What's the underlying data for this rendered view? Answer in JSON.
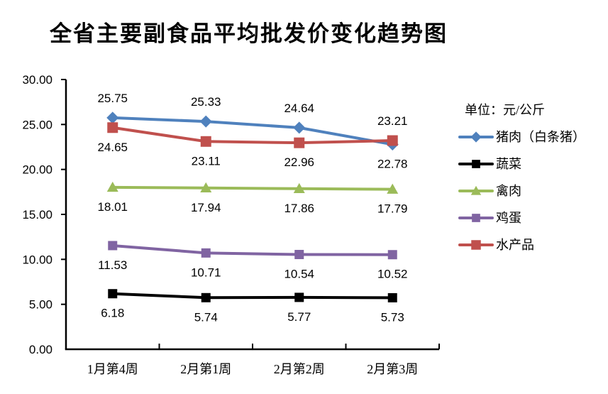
{
  "title": "全省主要副食品平均批发价变化趋势图",
  "legend": {
    "unit_label": "单位：元/公斤",
    "position": "right"
  },
  "chart_data": {
    "type": "line",
    "title": "全省主要副食品平均批发价变化趋势图",
    "unit": "元/公斤",
    "categories": [
      "1月第4周",
      "2月第1周",
      "2月第2周",
      "2月第3周"
    ],
    "xlabel": "",
    "ylabel": "",
    "y_axis": {
      "min": 0,
      "max": 30,
      "step": 5,
      "tick_labels": [
        "0.00",
        "5.00",
        "10.00",
        "15.00",
        "20.00",
        "25.00",
        "30.00"
      ]
    },
    "grid": false,
    "legend_position": "right",
    "series": [
      {
        "name": "猪肉（白条猪）",
        "color": "#4F81BD",
        "marker": "diamond",
        "values": [
          25.75,
          25.33,
          24.64,
          22.78
        ],
        "labels": [
          "25.75",
          "25.33",
          "24.64",
          "22.78"
        ],
        "label_positions": [
          "above",
          "above",
          "above",
          "below"
        ]
      },
      {
        "name": "蔬菜",
        "color": "#000000",
        "marker": "square",
        "values": [
          6.18,
          5.74,
          5.77,
          5.73
        ],
        "labels": [
          "6.18",
          "5.74",
          "5.77",
          "5.73"
        ],
        "label_positions": [
          "below",
          "below",
          "below",
          "below"
        ]
      },
      {
        "name": "禽肉",
        "color": "#9BBB59",
        "marker": "triangle",
        "values": [
          18.01,
          17.94,
          17.86,
          17.79
        ],
        "labels": [
          "18.01",
          "17.94",
          "17.86",
          "17.79"
        ],
        "label_positions": [
          "below",
          "below",
          "below",
          "below"
        ]
      },
      {
        "name": "鸡蛋",
        "color": "#8064A2",
        "marker": "square",
        "values": [
          11.53,
          10.71,
          10.54,
          10.52
        ],
        "labels": [
          "11.53",
          "10.71",
          "10.54",
          "10.52"
        ],
        "label_positions": [
          "below",
          "below",
          "below",
          "below"
        ]
      },
      {
        "name": "水产品",
        "color": "#C0504D",
        "marker": "square",
        "values": [
          24.65,
          23.11,
          22.96,
          23.21
        ],
        "labels": [
          "24.65",
          "23.11",
          "22.96",
          "23.21"
        ],
        "label_positions": [
          "below",
          "below",
          "below",
          "above"
        ]
      }
    ]
  }
}
